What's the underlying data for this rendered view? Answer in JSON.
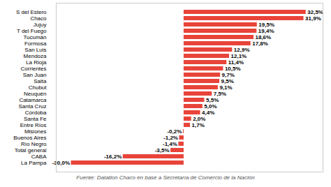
{
  "chart_data": {
    "type": "bar",
    "orientation": "horizontal",
    "categories": [
      "S del Estero",
      "Chaco",
      "Jujuy",
      "T del Fuego",
      "Tucumán",
      "Formosa",
      "San Luis",
      "Mendoza",
      "La Rioja",
      "Corrientes",
      "San Juan",
      "Salta",
      "Chubut",
      "Neuquén",
      "Catamarca",
      "Santa Cruz",
      "Córdoba",
      "Santa Fe",
      "Entre Ríos",
      "Misiones",
      "Buenos Aires",
      "Río Negro",
      "Total general",
      "CABA",
      "La Pampa"
    ],
    "values": [
      32.5,
      31.9,
      19.5,
      19.4,
      18.6,
      17.8,
      12.9,
      12.1,
      11.4,
      10.5,
      9.7,
      9.5,
      9.1,
      7.5,
      5.5,
      5.0,
      4.4,
      2.0,
      1.7,
      -0.2,
      -1.2,
      -1.4,
      -3.5,
      -16.2,
      -30.0
    ],
    "value_labels": [
      "32,5%",
      "31,9%",
      "19,5%",
      "19,4%",
      "18,6%",
      "17,8%",
      "12,9%",
      "12,1%",
      "11,4%",
      "10,5%",
      "9,7%",
      "9,5%",
      "9,1%",
      "7,5%",
      "5,5%",
      "5,0%",
      "4,4%",
      "2,0%",
      "1,7%",
      "-0,2%",
      "-1,2%",
      "-1,4%",
      "-3,5%",
      "-16,2%",
      "-30,0%"
    ],
    "data_labels": true,
    "color": "#e8443a",
    "xlim": [
      -34,
      37
    ],
    "tick_labels": "y",
    "grid": false,
    "caption": "Fuente: Datatlon Chaco en base a Secretaría de Comercio de la Nación"
  }
}
